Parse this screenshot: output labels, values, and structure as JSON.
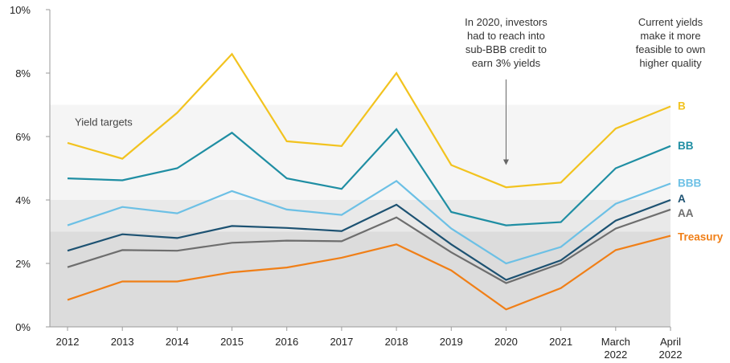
{
  "chart_data": {
    "type": "line",
    "title": "",
    "xlabel": "",
    "ylabel": "",
    "ylim": [
      0,
      10
    ],
    "y_ticks": [
      "0%",
      "2%",
      "4%",
      "6%",
      "8%",
      "10%"
    ],
    "y_tick_values": [
      0,
      2,
      4,
      6,
      8,
      10
    ],
    "categories": [
      [
        "2012"
      ],
      [
        "2013"
      ],
      [
        "2014"
      ],
      [
        "2015"
      ],
      [
        "2016"
      ],
      [
        "2017"
      ],
      [
        "2018"
      ],
      [
        "2019"
      ],
      [
        "2020"
      ],
      [
        "2021"
      ],
      [
        "March",
        "2022"
      ],
      [
        "April",
        "2022"
      ]
    ],
    "series": [
      {
        "name": "B",
        "color": "#f2c31f",
        "values": [
          5.8,
          5.3,
          6.75,
          8.6,
          5.85,
          5.7,
          8.0,
          5.1,
          4.4,
          4.55,
          6.25,
          6.95
        ]
      },
      {
        "name": "BB",
        "color": "#1f8ea3",
        "values": [
          4.68,
          4.62,
          5.0,
          6.12,
          4.68,
          4.35,
          6.23,
          3.62,
          3.2,
          3.3,
          5.0,
          5.7
        ]
      },
      {
        "name": "BBB",
        "color": "#6cc0e5",
        "values": [
          3.2,
          3.78,
          3.58,
          4.28,
          3.7,
          3.53,
          4.6,
          3.1,
          2.0,
          2.52,
          3.88,
          4.52
        ]
      },
      {
        "name": "A",
        "color": "#1d5272",
        "values": [
          2.4,
          2.92,
          2.8,
          3.18,
          3.12,
          3.02,
          3.85,
          2.6,
          1.48,
          2.1,
          3.35,
          4.0
        ]
      },
      {
        "name": "AA",
        "color": "#6e6e6e",
        "values": [
          1.88,
          2.42,
          2.4,
          2.65,
          2.72,
          2.7,
          3.45,
          2.35,
          1.38,
          2.0,
          3.1,
          3.7
        ]
      },
      {
        "name": "Treasury",
        "color": "#f07f17",
        "values": [
          0.85,
          1.43,
          1.43,
          1.72,
          1.87,
          2.18,
          2.6,
          1.78,
          0.55,
          1.22,
          2.42,
          2.87
        ]
      }
    ],
    "bands": [
      {
        "from": 4,
        "to": 7,
        "color": "#f5f5f5"
      },
      {
        "from": 3,
        "to": 4,
        "color": "#e9e9e9"
      },
      {
        "from": 0,
        "to": 3,
        "color": "#dcdcdc"
      }
    ],
    "band_label": "Yield targets",
    "annotations": [
      {
        "lines": [
          "In 2020, investors",
          "had to reach into",
          "sub-BBB credit to",
          "earn 3% yields"
        ],
        "category_index": 8,
        "arrow_from": 7.8,
        "arrow_to": 5.1
      },
      {
        "lines": [
          "Current yields",
          "make it more",
          "feasible to own",
          "higher quality"
        ],
        "category_index": 11
      }
    ]
  }
}
